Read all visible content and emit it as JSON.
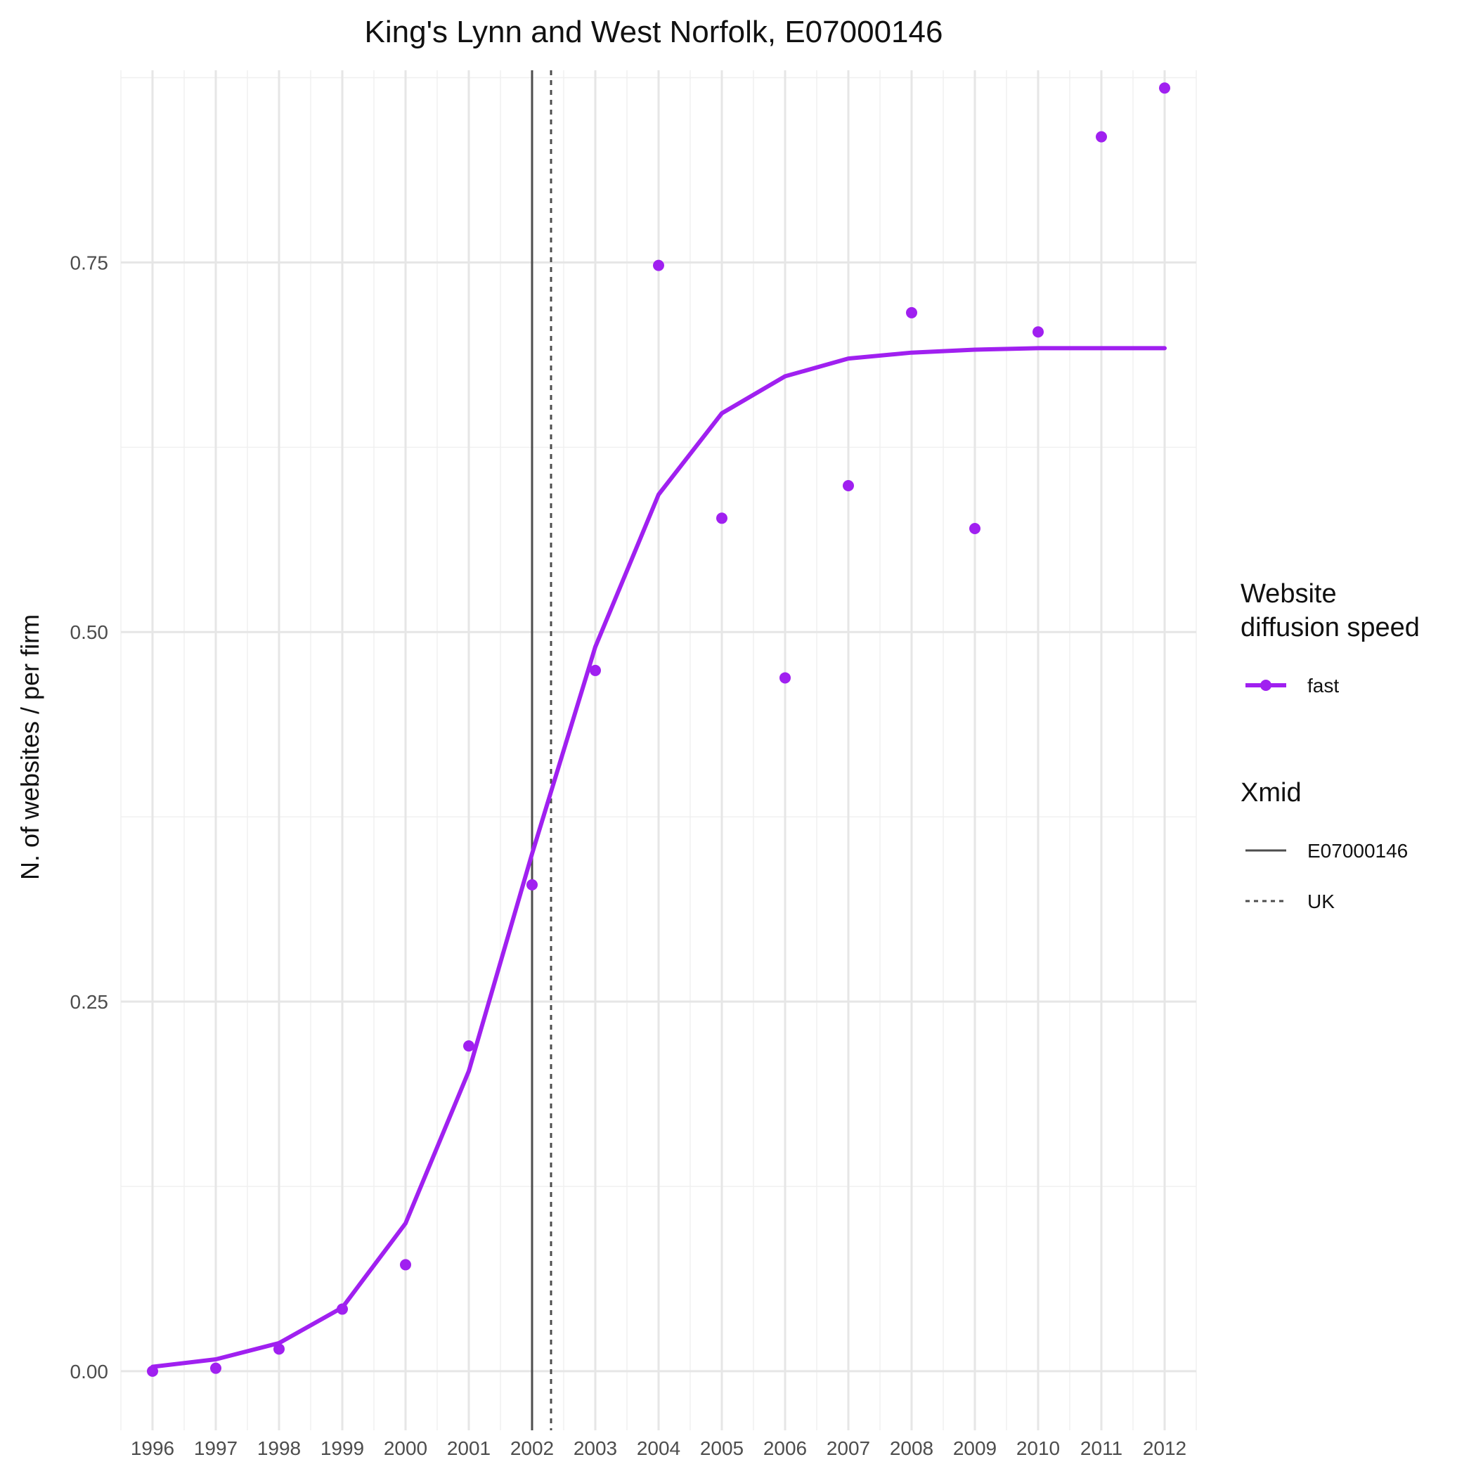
{
  "chart_data": {
    "type": "line",
    "title": "King's Lynn and West Norfolk, E07000146",
    "xlabel": "",
    "ylabel": "N. of websites / per firm",
    "x": [
      1996,
      1997,
      1998,
      1999,
      2000,
      2001,
      2002,
      2003,
      2004,
      2005,
      2006,
      2007,
      2008,
      2009,
      2010,
      2011,
      2012
    ],
    "x_tick_labels": [
      "1996",
      "1997",
      "1998",
      "1999",
      "2000",
      "2001",
      "2002",
      "2003",
      "2004",
      "2005",
      "2006",
      "2007",
      "2008",
      "2009",
      "2010",
      "2011",
      "2012"
    ],
    "y_ticks": [
      0,
      0.25,
      0.5,
      0.75
    ],
    "y_tick_labels": [
      "0.00",
      "0.25",
      "0.50",
      "0.75"
    ],
    "xlim": [
      1995.5,
      2012.5
    ],
    "ylim": [
      -0.04,
      0.88
    ],
    "grid": true,
    "series": [
      {
        "name": "fast",
        "color": "#a020f0",
        "fitted": [
          0.003,
          0.008,
          0.019,
          0.043,
          0.1,
          0.203,
          0.35,
          0.49,
          0.593,
          0.648,
          0.673,
          0.685,
          0.689,
          0.691,
          0.692,
          0.692,
          0.692
        ],
        "observed": [
          0.0,
          0.002,
          0.015,
          0.042,
          0.072,
          0.22,
          0.329,
          0.474,
          0.748,
          0.577,
          0.469,
          0.599,
          0.716,
          0.57,
          0.703,
          0.835,
          0.868
        ]
      }
    ],
    "vlines": [
      {
        "name": "E07000146",
        "x": 2002.0,
        "style": "solid",
        "color": "#4d4d4d"
      },
      {
        "name": "UK",
        "x": 2002.3,
        "style": "dotted",
        "color": "#4d4d4d"
      }
    ],
    "legend": {
      "position": "right",
      "groups": [
        {
          "title_lines": [
            "Website",
            "diffusion speed"
          ],
          "items": [
            "fast"
          ]
        },
        {
          "title_lines": [
            "Xmid"
          ],
          "items": [
            "E07000146",
            "UK"
          ]
        }
      ]
    }
  }
}
